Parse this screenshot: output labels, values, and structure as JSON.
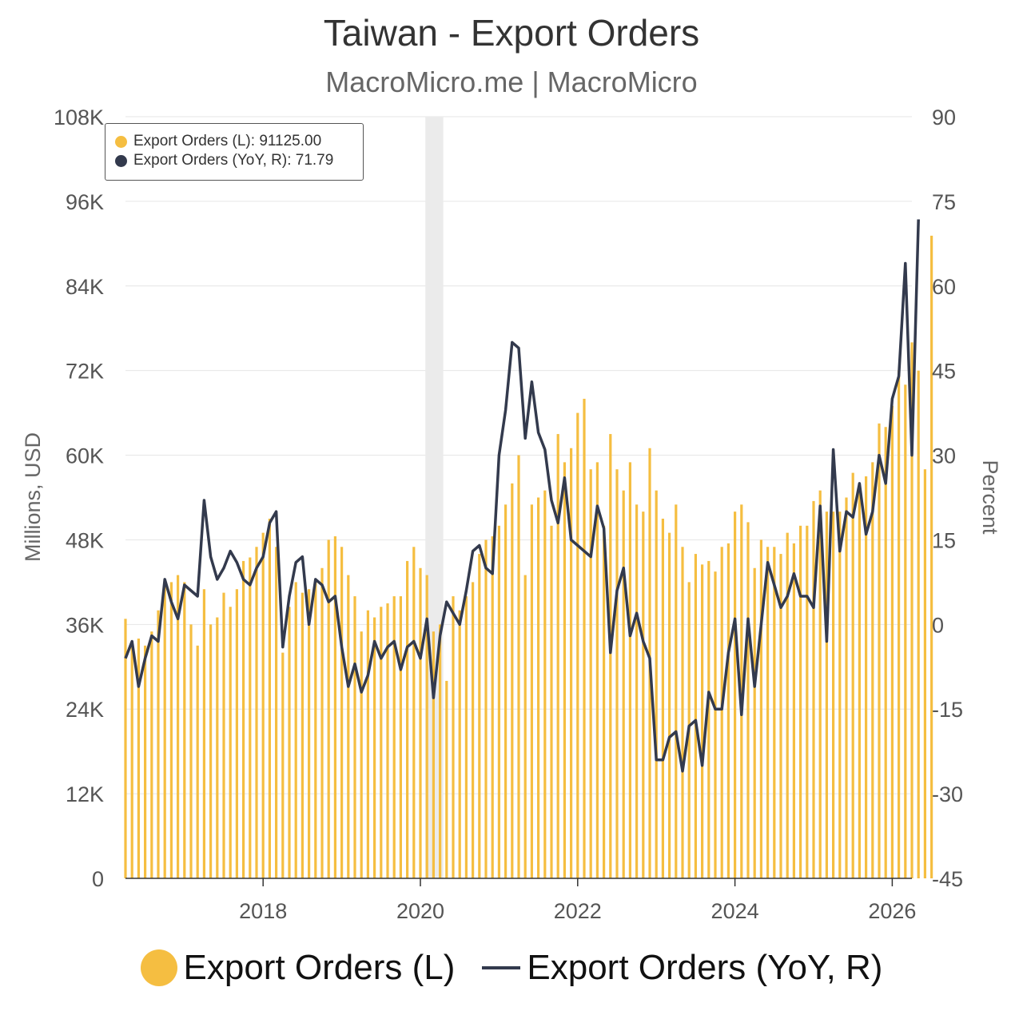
{
  "title": "Taiwan - Export Orders",
  "subtitle": "MacroMicro.me | MacroMicro",
  "colors": {
    "bars": "#F5BE41",
    "line": "#333A4D",
    "grid": "#E6E6E6",
    "recession": "#EBEBEB"
  },
  "tooltip": {
    "row1": "Export Orders (L): 91125.00",
    "row2": "Export Orders (YoY, R): 71.79"
  },
  "legend": {
    "bar_label": "Export Orders (L)",
    "line_label": "Export Orders (YoY, R)"
  },
  "chart_data": {
    "type": "bar",
    "x_start": "2016-04",
    "frequency": "monthly",
    "x_ticks": [
      "2018",
      "2020",
      "2022",
      "2024",
      "2026"
    ],
    "left_axis": {
      "label": "Millions, USD",
      "ticks": [
        "0",
        "12K",
        "24K",
        "36K",
        "48K",
        "60K",
        "72K",
        "84K",
        "96K",
        "108K"
      ],
      "ylim": [
        0,
        108000
      ]
    },
    "right_axis": {
      "label": "Percent",
      "ticks": [
        "-45",
        "-30",
        "-15",
        "0",
        "15",
        "30",
        "45",
        "60",
        "75",
        "90"
      ],
      "ylim": [
        -45,
        90
      ]
    },
    "shaded_period": [
      "2020-02",
      "2020-04"
    ],
    "series": [
      {
        "name": "Export Orders (L)",
        "type": "bar",
        "axis": "left",
        "values": [
          36800,
          33000,
          34000,
          33000,
          35000,
          38000,
          42000,
          42000,
          43000,
          42000,
          36000,
          33000,
          41000,
          36000,
          37000,
          40500,
          38500,
          41000,
          45000,
          45500,
          47000,
          49000,
          51000,
          47000,
          32000,
          38500,
          42000,
          40500,
          41000,
          42000,
          44000,
          48000,
          48500,
          47000,
          43000,
          40000,
          35000,
          38000,
          37000,
          38500,
          39000,
          40000,
          40000,
          45000,
          47000,
          44000,
          43000,
          35000,
          36000,
          28000,
          40000,
          38000,
          40000,
          42000,
          46000,
          48000,
          48500,
          50000,
          53000,
          56000,
          60000,
          43000,
          53000,
          54000,
          55000,
          50000,
          63000,
          59000,
          61000,
          66000,
          68000,
          58000,
          59000,
          50000,
          63000,
          58000,
          55000,
          59000,
          53000,
          52000,
          61000,
          55000,
          51000,
          49000,
          53000,
          47000,
          42000,
          46000,
          44500,
          45000,
          43500,
          47000,
          47500,
          52000,
          53000,
          50500,
          44000,
          48000,
          47000,
          47000,
          46000,
          49000,
          47500,
          50000,
          50000,
          53500,
          55000,
          52000,
          52000,
          52000,
          54000,
          57500,
          56000,
          57000,
          59000,
          64500,
          64000,
          67000,
          72000,
          70000,
          76000,
          72000,
          58000,
          91125
        ]
      },
      {
        "name": "Export Orders (YoY, R)",
        "type": "line",
        "axis": "right",
        "values": [
          -6,
          -3,
          -11,
          -6,
          -2,
          -3,
          8,
          4,
          1,
          7,
          6,
          5,
          22,
          12,
          8,
          10,
          13,
          11,
          8,
          7,
          10,
          12,
          18,
          20,
          -4,
          5,
          11,
          12,
          0,
          8,
          7,
          4,
          5,
          -4,
          -11,
          -7,
          -12,
          -9,
          -3,
          -6,
          -4,
          -3,
          -8,
          -4,
          -3,
          -6,
          1,
          -13,
          -2,
          4,
          2,
          0,
          6,
          13,
          14,
          10,
          9,
          30,
          38,
          50,
          49,
          33,
          43,
          34,
          31,
          22,
          18,
          26,
          15,
          14,
          13,
          12,
          21,
          17,
          -5,
          6,
          10,
          -2,
          2,
          -3,
          -6,
          -24,
          -24,
          -20,
          -19,
          -26,
          -18,
          -17,
          -25,
          -12,
          -15,
          -15,
          -5,
          1,
          -16,
          1,
          -11,
          0,
          11,
          7,
          3,
          5,
          9,
          5,
          5,
          3,
          21,
          -3,
          31,
          13,
          20,
          19,
          25,
          16,
          20,
          30,
          25,
          40,
          44,
          64,
          30,
          71.79
        ]
      }
    ]
  }
}
